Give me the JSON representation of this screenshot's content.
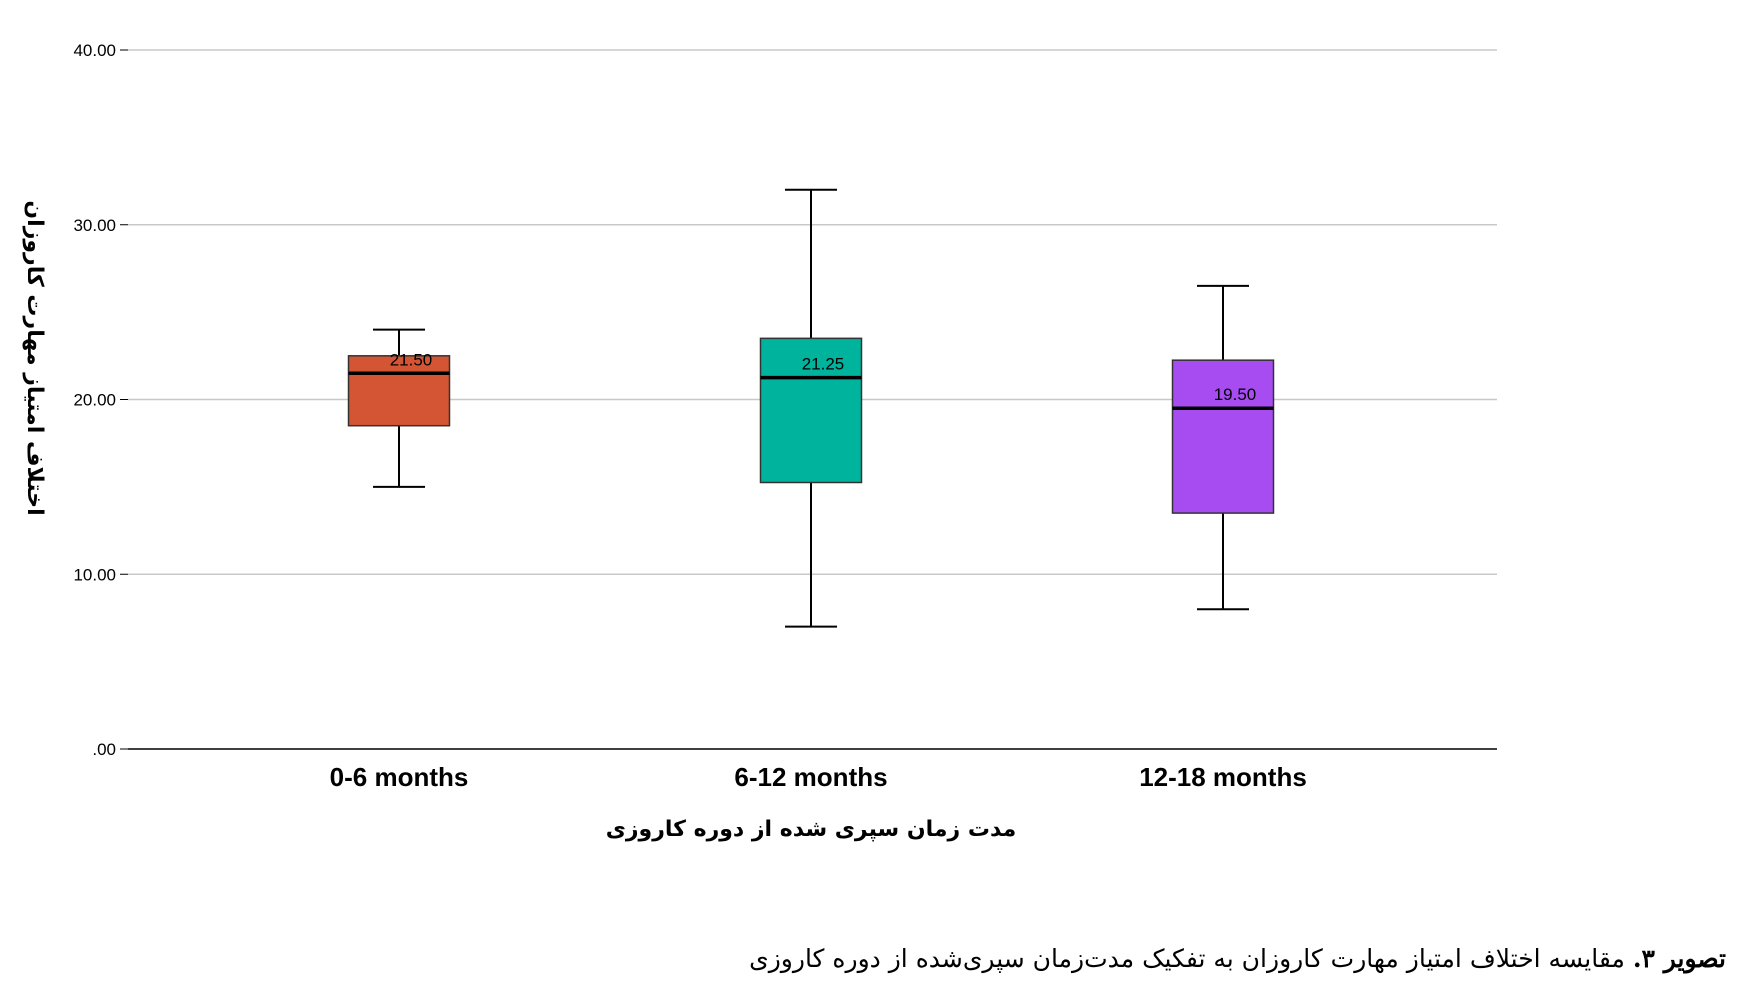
{
  "chart_data": {
    "type": "box",
    "ylabel": "اختلاف امتیاز مهارت کاروزان",
    "xlabel": "مدت زمان سپری شده از دوره کاروزی",
    "ylim": [
      0,
      43
    ],
    "yticks": [
      0,
      10,
      20,
      30,
      40
    ],
    "ytick_labels": [
      ".00",
      "10.00",
      "20.00",
      "30.00",
      "40.00"
    ],
    "grid": true,
    "categories": [
      "0-6 months",
      "6-12 months",
      "12-18 months"
    ],
    "boxes": [
      {
        "category": "0-6 months",
        "min": 15.0,
        "q1": 18.5,
        "median": 21.5,
        "q3": 22.5,
        "max": 24.0,
        "median_label": "21.50",
        "color": "#d35533"
      },
      {
        "category": "6-12 months",
        "min": 7.0,
        "q1": 15.25,
        "median": 21.25,
        "q3": 23.5,
        "max": 32.0,
        "median_label": "21.25",
        "color": "#00b39c"
      },
      {
        "category": "12-18 months",
        "min": 8.0,
        "q1": 13.5,
        "median": 19.5,
        "q3": 22.25,
        "max": 26.5,
        "median_label": "19.50",
        "color": "#a64cf0"
      }
    ]
  },
  "caption": {
    "label": "تصویر ۳.",
    "text": "مقایسه اختلاف امتیاز مهارت کاروزان به تفکیک مدت‌زمان سپری‌شده از دوره کاروزی"
  }
}
